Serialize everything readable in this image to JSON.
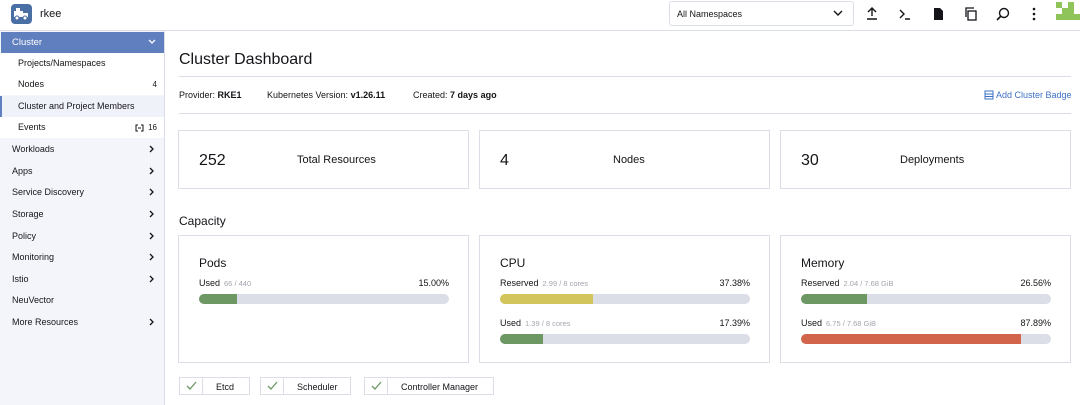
{
  "topbar": {
    "cluster_name": "rkee",
    "namespace_select": "All Namespaces",
    "icons": [
      "upload-icon",
      "terminal-icon",
      "file-icon",
      "copy-icon",
      "search-icon",
      "more-vertical-icon"
    ]
  },
  "sidebar": {
    "group_label": "Cluster",
    "cluster_items": [
      {
        "label": "Projects/Namespaces",
        "count": ""
      },
      {
        "label": "Nodes",
        "count": "4"
      },
      {
        "label": "Cluster and Project Members",
        "count": ""
      },
      {
        "label": "Events",
        "count": "16"
      }
    ],
    "items": [
      {
        "label": "Workloads",
        "expandable": true
      },
      {
        "label": "Apps",
        "expandable": true
      },
      {
        "label": "Service Discovery",
        "expandable": true
      },
      {
        "label": "Storage",
        "expandable": true
      },
      {
        "label": "Policy",
        "expandable": true
      },
      {
        "label": "Monitoring",
        "expandable": true
      },
      {
        "label": "Istio",
        "expandable": true
      },
      {
        "label": "NeuVector",
        "expandable": false
      },
      {
        "label": "More Resources",
        "expandable": true
      }
    ]
  },
  "main": {
    "title": "Cluster Dashboard",
    "provider_label": "Provider:",
    "provider_value": "RKE1",
    "k8s_label": "Kubernetes Version:",
    "k8s_value": "v1.26.11",
    "created_label": "Created:",
    "created_value": "7 days ago",
    "add_badge": "Add Cluster Badge",
    "counts": [
      {
        "value": "252",
        "label": "Total Resources"
      },
      {
        "value": "4",
        "label": "Nodes"
      },
      {
        "value": "30",
        "label": "Deployments"
      }
    ],
    "capacity_title": "Capacity",
    "gauges": [
      {
        "title": "Pods",
        "rows": [
          {
            "label": "Used",
            "detail": "66 / 440",
            "percent": "15.00%",
            "fraction": 0.15,
            "color": "#6d9863"
          }
        ]
      },
      {
        "title": "CPU",
        "rows": [
          {
            "label": "Reserved",
            "detail": "2.99 / 8 cores",
            "percent": "37.38%",
            "fraction": 0.3738,
            "color": "#d2c55c"
          },
          {
            "label": "Used",
            "detail": "1.39 / 8 cores",
            "percent": "17.39%",
            "fraction": 0.1739,
            "color": "#6d9863"
          }
        ]
      },
      {
        "title": "Memory",
        "rows": [
          {
            "label": "Reserved",
            "detail": "2.04 / 7.68 GiB",
            "percent": "26.56%",
            "fraction": 0.2656,
            "color": "#6d9863"
          },
          {
            "label": "Used",
            "detail": "6.75 / 7.68 GiB",
            "percent": "87.89%",
            "fraction": 0.8789,
            "color": "#d1644b"
          }
        ]
      }
    ],
    "components": [
      "Etcd",
      "Scheduler",
      "Controller Manager"
    ]
  },
  "colors": {
    "accent": "#5f7fbf",
    "link": "#3d71c8",
    "ok_green": "#6d9863",
    "warn_yellow": "#d2c55c",
    "danger_red": "#d1644b"
  }
}
